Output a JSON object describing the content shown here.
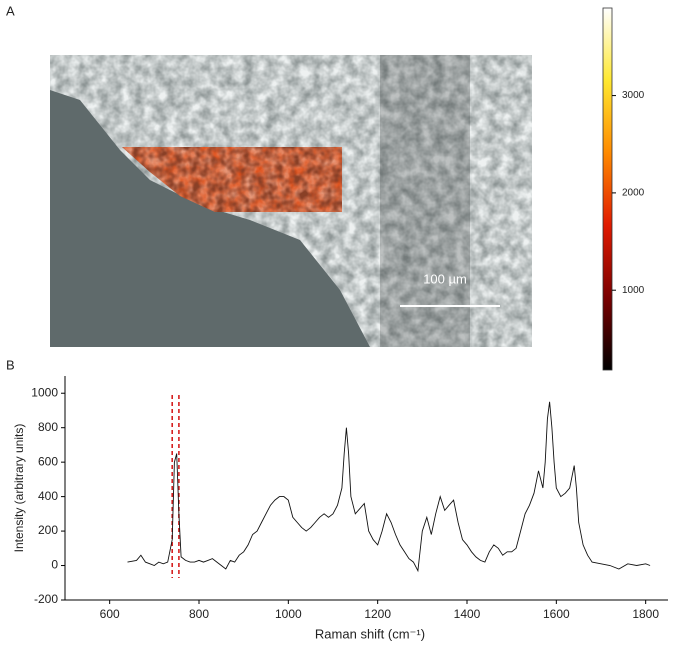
{
  "chart_data": [
    {
      "type": "image-map",
      "panel": "A",
      "scale_bar": "100 µm",
      "colorbar": {
        "clim": [
          180,
          3900
        ],
        "ticks": [
          1000,
          2000,
          3000
        ],
        "colormap": [
          "#000000",
          "#7a0000",
          "#e01a00",
          "#ff8a00",
          "#ffe830",
          "#ffffff"
        ]
      }
    },
    {
      "type": "line",
      "panel": "B",
      "xlabel": "Raman shift (cm⁻¹)",
      "ylabel": "Intensity (arbitrary units)",
      "xlim": [
        500,
        1850
      ],
      "ylim": [
        -200,
        1100
      ],
      "xticks": [
        600,
        800,
        1000,
        1200,
        1400,
        1600,
        1800
      ],
      "yticks": [
        -200,
        0,
        200,
        400,
        600,
        800,
        1000
      ],
      "markers": [
        740,
        755
      ],
      "marker_color": "#d62020",
      "x": [
        640,
        660,
        670,
        680,
        690,
        700,
        710,
        720,
        730,
        740,
        745,
        750,
        755,
        760,
        770,
        780,
        790,
        800,
        810,
        820,
        830,
        840,
        850,
        860,
        870,
        880,
        890,
        900,
        910,
        920,
        930,
        940,
        950,
        960,
        970,
        980,
        990,
        1000,
        1010,
        1020,
        1030,
        1040,
        1050,
        1060,
        1070,
        1080,
        1090,
        1100,
        1110,
        1120,
        1125,
        1130,
        1135,
        1140,
        1150,
        1160,
        1170,
        1180,
        1190,
        1200,
        1210,
        1220,
        1230,
        1240,
        1250,
        1260,
        1270,
        1280,
        1290,
        1300,
        1310,
        1320,
        1330,
        1340,
        1350,
        1360,
        1370,
        1380,
        1390,
        1400,
        1410,
        1420,
        1430,
        1440,
        1450,
        1460,
        1470,
        1480,
        1490,
        1500,
        1510,
        1520,
        1530,
        1540,
        1550,
        1560,
        1570,
        1575,
        1580,
        1585,
        1590,
        1595,
        1600,
        1610,
        1620,
        1630,
        1640,
        1645,
        1650,
        1660,
        1670,
        1680,
        1700,
        1720,
        1740,
        1760,
        1780,
        1800,
        1810
      ],
      "series": [
        {
          "color": "#111111",
          "values": [
            20,
            30,
            60,
            20,
            10,
            0,
            20,
            10,
            20,
            150,
            600,
            650,
            300,
            50,
            30,
            20,
            20,
            30,
            20,
            30,
            40,
            20,
            0,
            -20,
            30,
            20,
            60,
            80,
            120,
            180,
            200,
            250,
            300,
            350,
            380,
            400,
            400,
            380,
            280,
            250,
            220,
            200,
            220,
            250,
            280,
            300,
            280,
            300,
            350,
            450,
            650,
            800,
            650,
            400,
            300,
            330,
            360,
            200,
            150,
            120,
            200,
            300,
            250,
            180,
            120,
            80,
            40,
            20,
            -30,
            200,
            280,
            180,
            300,
            400,
            320,
            350,
            380,
            250,
            150,
            120,
            80,
            50,
            30,
            20,
            80,
            120,
            100,
            60,
            80,
            80,
            100,
            200,
            300,
            350,
            420,
            550,
            450,
            600,
            850,
            950,
            800,
            600,
            450,
            400,
            420,
            450,
            580,
            450,
            250,
            120,
            60,
            20,
            10,
            0,
            -20,
            10,
            0,
            10,
            0
          ]
        }
      ]
    }
  ]
}
